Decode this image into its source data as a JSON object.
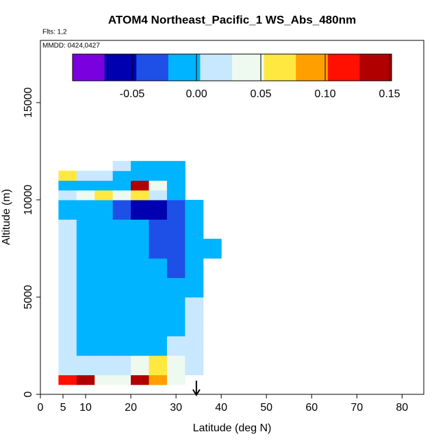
{
  "chart_data": {
    "type": "heatmap",
    "title": "ATOM4 Northeast_Pacific_1 WS_Abs_480nm",
    "annotations": [
      "Flts: 1,2",
      "MMDD: 0424,0427"
    ],
    "xlabel": "Latitude (deg N)",
    "ylabel": "Altitude (m)",
    "xlim": [
      0,
      84.8
    ],
    "ylim": [
      0,
      18200
    ],
    "xticks": [
      0,
      5,
      10,
      20,
      30,
      40,
      50,
      60,
      70,
      80
    ],
    "yticks": [
      0,
      5000,
      10000,
      15000
    ],
    "x_edges": [
      4,
      8,
      12,
      16,
      20,
      24,
      28,
      32,
      36,
      40
    ],
    "y_edges": [
      500,
      1000,
      2000,
      3000,
      4000,
      5000,
      6000,
      7000,
      8000,
      9000,
      10000,
      10500,
      11000,
      11500,
      12000
    ],
    "z": [
      [
        0.11,
        0.13,
        0.05,
        0.04,
        0.13,
        0.09,
        0.05,
        null,
        null
      ],
      [
        0.01,
        0.01,
        0.01,
        0.02,
        0.04,
        0.06,
        0.04,
        0.02,
        null
      ],
      [
        0.01,
        0.0,
        -0.01,
        -0.01,
        -0.005,
        0.0,
        0.005,
        0.02,
        null
      ],
      [
        0.005,
        -0.01,
        -0.015,
        -0.015,
        -0.01,
        -0.005,
        -0.01,
        0.02,
        null
      ],
      [
        0.01,
        -0.01,
        -0.02,
        -0.015,
        -0.01,
        -0.01,
        -0.02,
        0.01,
        null
      ],
      [
        0.01,
        -0.01,
        -0.015,
        -0.015,
        -0.01,
        -0.015,
        -0.02,
        -0.01,
        null
      ],
      [
        0.005,
        -0.005,
        -0.01,
        -0.01,
        -0.015,
        -0.02,
        -0.03,
        -0.01,
        null
      ],
      [
        0.005,
        0.0,
        -0.005,
        -0.01,
        -0.015,
        -0.025,
        -0.035,
        -0.015,
        -0.005
      ],
      [
        0.01,
        0.0,
        -0.005,
        -0.01,
        -0.02,
        -0.035,
        -0.045,
        -0.02,
        null
      ],
      [
        0.0,
        -0.005,
        -0.02,
        -0.04,
        -0.06,
        -0.07,
        -0.03,
        -0.01,
        null
      ],
      [
        0.02,
        0.04,
        0.06,
        0.04,
        0.06,
        0.02,
        0.0,
        null,
        null
      ],
      [
        0.0,
        -0.02,
        0.0,
        0.0,
        0.14,
        0.03,
        0.0,
        null,
        null
      ],
      [
        0.06,
        0.02,
        0.005,
        0.0,
        -0.005,
        -0.005,
        0.0,
        null,
        null
      ],
      [
        null,
        null,
        null,
        0.01,
        0.0,
        -0.005,
        -0.005,
        null,
        null
      ]
    ],
    "clim": [
      -0.0963,
      0.1516
    ],
    "colorscale": [
      "#7b00e0",
      "#0000b0",
      "#1e50e8",
      "#00b4ff",
      "#c8e8ff",
      "#eefaf0",
      "#ffe840",
      "#ffa000",
      "#ff1000",
      "#b00000"
    ],
    "cticks": [
      {
        "value": -0.05,
        "label": "-0.05"
      },
      {
        "value": 0,
        "label": "0.00"
      },
      {
        "value": 0.05,
        "label": "0.05"
      },
      {
        "value": 0.1,
        "label": "0.10"
      },
      {
        "value": 0.15,
        "label": "0.15"
      }
    ],
    "marker_x": 34.5
  }
}
